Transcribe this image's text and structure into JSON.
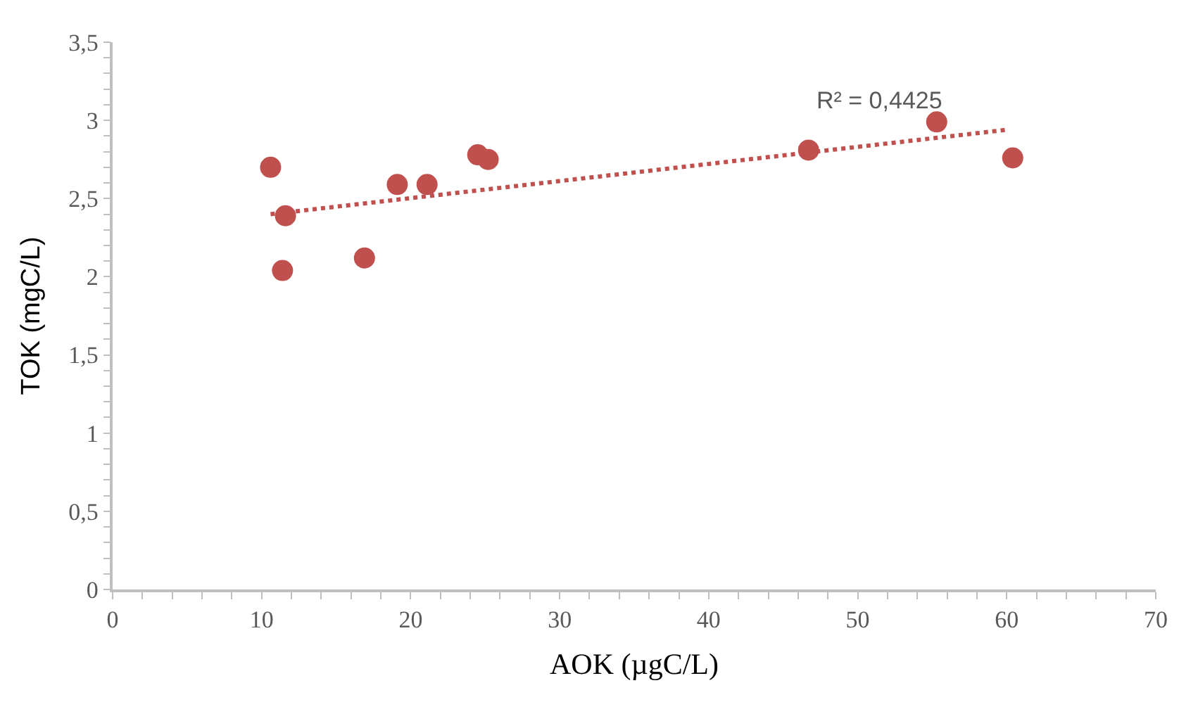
{
  "chart_data": {
    "type": "scatter",
    "xlabel": "AOK (µgC/L)",
    "ylabel": "TOK (mgC/L)",
    "xlim": [
      0,
      70
    ],
    "xticks": [
      0,
      10,
      20,
      30,
      40,
      50,
      60,
      70
    ],
    "ylim": [
      0,
      3.5
    ],
    "yticks": [
      {
        "value": 0,
        "label": "0"
      },
      {
        "value": 0.5,
        "label": "0,5"
      },
      {
        "value": 1,
        "label": "1"
      },
      {
        "value": 1.5,
        "label": "1,5"
      },
      {
        "value": 2,
        "label": "2"
      },
      {
        "value": 2.5,
        "label": "2,5"
      },
      {
        "value": 3,
        "label": "3"
      },
      {
        "value": 3.5,
        "label": "3,5"
      }
    ],
    "legend": false,
    "series": [
      {
        "marker": "circle",
        "color": "#c0504d",
        "x": [
          10.6,
          11.6,
          11.4,
          16.9,
          19.1,
          21.1,
          24.5,
          25.2,
          46.7,
          55.3,
          60.4
        ],
        "values": [
          2.7,
          2.39,
          2.04,
          2.12,
          2.59,
          2.59,
          2.78,
          2.75,
          2.81,
          2.99,
          2.76
        ]
      },
      {
        "type": "line",
        "color": "#c0504d",
        "line_style": "dotted",
        "x": [
          10.6,
          60
        ],
        "values": [
          2.4,
          2.94
        ]
      }
    ],
    "annotations": [
      "R² = 0,4425"
    ]
  }
}
